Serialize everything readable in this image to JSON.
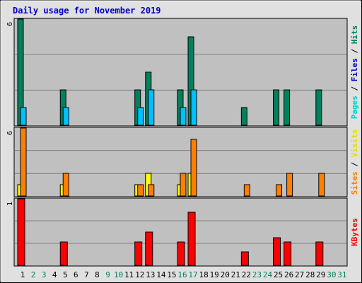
{
  "chart_data": {
    "type": "bar",
    "title": "Daily usage for November 2019",
    "colors": {
      "hits": "#00805C",
      "files": "#00C0FF",
      "pages": "#00D0D0",
      "visits": "#FFFF00",
      "sites": "#FF8000",
      "kbytes": "#FF0000",
      "weekday_label": "#000000",
      "weekend_label": "#00805C",
      "title": "#0000CC",
      "plot_bg": "#C0C0C0",
      "frame_bg": "#E0E0E0"
    },
    "days": [
      "1",
      "2",
      "3",
      "4",
      "5",
      "6",
      "7",
      "8",
      "9",
      "10",
      "11",
      "12",
      "13",
      "14",
      "15",
      "16",
      "17",
      "18",
      "19",
      "20",
      "21",
      "22",
      "23",
      "24",
      "25",
      "26",
      "27",
      "28",
      "29",
      "30",
      "31"
    ],
    "weekend_days": [
      "2",
      "3",
      "9",
      "10",
      "16",
      "17",
      "23",
      "24",
      "30",
      "31"
    ],
    "panels": [
      {
        "name": "hits_files_pages",
        "ymax": 6,
        "ytick_label": "6",
        "side_label": [
          {
            "text": "Pages",
            "color": "#00D0D0"
          },
          {
            "text": " / ",
            "color": "#000000"
          },
          {
            "text": "Files",
            "color": "#0000CC"
          },
          {
            "text": " / ",
            "color": "#000000"
          },
          {
            "text": "Hits",
            "color": "#00805C"
          }
        ],
        "series": [
          {
            "name": "Hits",
            "color": "#00805C",
            "values": [
              6,
              0,
              0,
              0,
              2,
              0,
              0,
              0,
              0,
              0,
              0,
              2,
              3,
              0,
              0,
              2,
              5,
              0,
              0,
              0,
              0,
              1,
              0,
              0,
              2,
              2,
              0,
              0,
              2,
              0,
              0
            ]
          },
          {
            "name": "Files",
            "color": "#00C0FF",
            "values": [
              1,
              0,
              0,
              0,
              1,
              0,
              0,
              0,
              0,
              0,
              0,
              1,
              2,
              0,
              0,
              1,
              2,
              0,
              0,
              0,
              0,
              0,
              0,
              0,
              0,
              0,
              0,
              0,
              0,
              0,
              0
            ]
          }
        ]
      },
      {
        "name": "visits_sites",
        "ymax": 6,
        "ytick_label": "6",
        "side_label": [
          {
            "text": "Sites",
            "color": "#FF8000"
          },
          {
            "text": " / ",
            "color": "#000000"
          },
          {
            "text": "Visits",
            "color": "#E0E000"
          }
        ],
        "series": [
          {
            "name": "Visits",
            "color": "#FFFF00",
            "values": [
              1,
              0,
              0,
              0,
              1,
              0,
              0,
              0,
              0,
              0,
              0,
              1,
              2,
              0,
              0,
              1,
              2,
              0,
              0,
              0,
              0,
              0,
              0,
              0,
              0,
              0,
              0,
              0,
              0,
              0,
              0
            ]
          },
          {
            "name": "Sites",
            "color": "#FF8000",
            "values": [
              6,
              0,
              0,
              0,
              2,
              0,
              0,
              0,
              0,
              0,
              0,
              1,
              1,
              0,
              0,
              2,
              5,
              0,
              0,
              0,
              0,
              1,
              0,
              0,
              1,
              2,
              0,
              0,
              2,
              0,
              0
            ]
          }
        ]
      },
      {
        "name": "kbytes",
        "ymax": 1,
        "ytick_label": "1",
        "side_label": [
          {
            "text": "KBytes",
            "color": "#FF0000"
          }
        ],
        "series": [
          {
            "name": "KBytes",
            "color": "#FF0000",
            "values": [
              1,
              0,
              0,
              0,
              0.35,
              0,
              0,
              0,
              0,
              0,
              0,
              0.35,
              0.5,
              0,
              0,
              0.35,
              0.8,
              0,
              0,
              0,
              0,
              0.2,
              0,
              0,
              0.42,
              0.35,
              0,
              0,
              0.35,
              0,
              0
            ]
          }
        ]
      }
    ]
  }
}
